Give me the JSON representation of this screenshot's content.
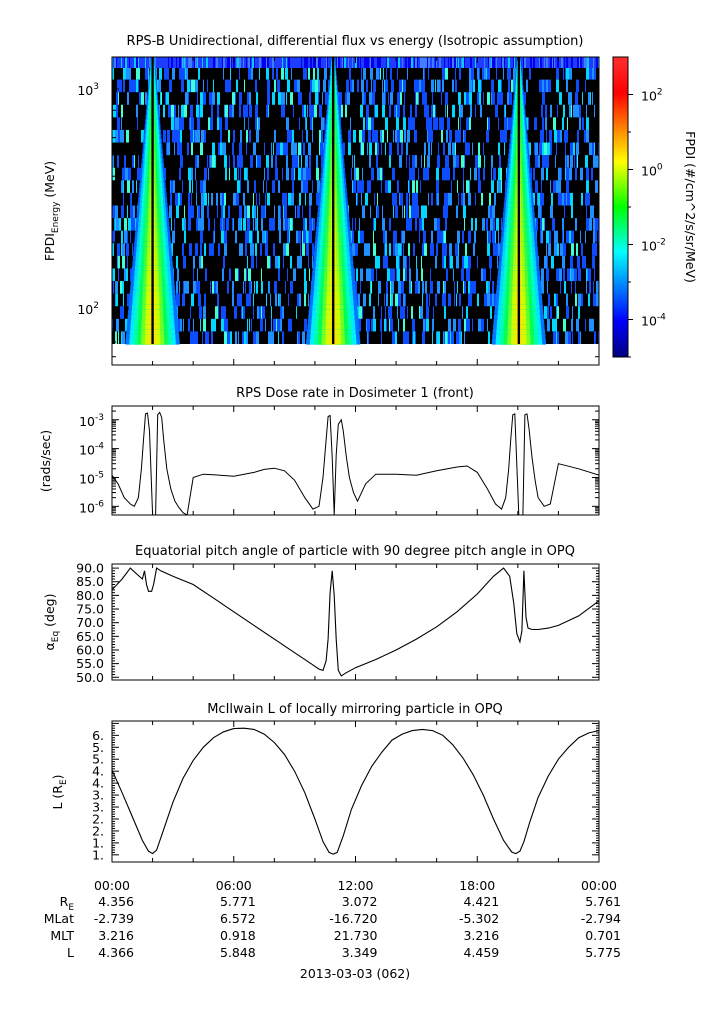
{
  "chart_data": [
    {
      "type": "heatmap",
      "title": "RPS-B  Unidirectional, differential flux vs energy (Isotropic assumption)",
      "ylabel_main": "FPDI",
      "ylabel_sub": "Energy",
      "ylabel_unit": " (MeV)",
      "y_scale": "log",
      "ylim": [
        55,
        1400
      ],
      "y_ticks": [
        {
          "value": 100,
          "base": "10",
          "exp": "2"
        },
        {
          "value": 1000,
          "base": "10",
          "exp": "3"
        }
      ],
      "xlim": [
        0,
        24
      ],
      "dark_bands_hours": [
        2.0,
        10.9,
        20.05
      ],
      "colorbar": {
        "label": "FPDI (#/cm^2/s/sr/MeV)",
        "scale": "log",
        "range": [
          1e-05,
          1000
        ],
        "ticks": [
          {
            "value": 100,
            "base": "10",
            "exp": "2"
          },
          {
            "value": 1,
            "base": "10",
            "exp": "0"
          },
          {
            "value": 0.01,
            "base": "10",
            "exp": "-2"
          },
          {
            "value": 0.0001,
            "base": "10",
            "exp": "-4"
          }
        ]
      }
    },
    {
      "type": "line",
      "title": "RPS  Dose rate in Dosimeter 1 (front)",
      "ylabel": "(rads/sec)",
      "y_scale": "log",
      "ylim": [
        5e-07,
        0.003
      ],
      "xlim": [
        0,
        24
      ],
      "y_ticks": [
        {
          "value": 0.001,
          "base": "10",
          "exp": "-3"
        },
        {
          "value": 0.0001,
          "base": "10",
          "exp": "-4"
        },
        {
          "value": 1e-05,
          "base": "10",
          "exp": "-5"
        },
        {
          "value": 1e-06,
          "base": "10",
          "exp": "-6"
        }
      ],
      "series": [
        {
          "x": [
            0.0,
            0.3,
            0.6,
            0.9,
            1.1,
            1.3,
            1.45,
            1.55,
            1.65,
            1.75,
            1.85,
            2.0,
            2.15,
            2.25,
            2.35,
            2.45,
            2.55,
            2.7,
            2.9,
            3.1,
            3.3,
            3.5,
            3.7,
            4.0,
            4.5,
            5.0,
            6.0,
            7.0,
            7.5,
            8.0,
            8.5,
            9.0,
            9.5,
            9.9,
            10.2,
            10.4,
            10.55,
            10.65,
            10.75,
            10.85,
            10.95,
            11.05,
            11.15,
            11.3,
            11.4,
            11.55,
            11.7,
            11.9,
            12.1,
            12.5,
            13.0,
            14.0,
            15.0,
            16.0,
            17.0,
            17.5,
            18.0,
            18.5,
            18.9,
            19.2,
            19.4,
            19.55,
            19.65,
            19.75,
            19.85,
            20.05,
            20.25,
            20.35,
            20.45,
            20.55,
            20.7,
            20.85,
            21.0,
            21.3,
            21.6,
            22.0,
            23.0,
            24.0
          ],
          "values": [
            1.2e-05,
            6e-06,
            2e-06,
            1.2e-06,
            1e-06,
            2e-06,
            2e-05,
            0.0002,
            0.0016,
            0.0017,
            0.0004,
            5e-07,
            5e-07,
            0.0015,
            0.0018,
            0.0012,
            0.0002,
            2e-05,
            4e-06,
            1.5e-06,
            9e-07,
            6e-07,
            5e-07,
            1e-05,
            1.3e-05,
            1.25e-05,
            1.1e-05,
            1.5e-05,
            1.9e-05,
            2.1e-05,
            1.7e-05,
            8e-06,
            2e-06,
            8e-07,
            1e-06,
            1e-05,
            0.0002,
            0.0013,
            0.0014,
            5e-05,
            5e-07,
            6e-05,
            0.0007,
            0.001,
            0.0004,
            5e-05,
            1e-05,
            3e-06,
            1.5e-06,
            6e-06,
            1.3e-05,
            1.3e-05,
            1.2e-05,
            1.7e-05,
            2.3e-05,
            2.5e-05,
            1.5e-05,
            4e-06,
            1.2e-06,
            8e-07,
            2e-06,
            2e-05,
            0.0002,
            0.0015,
            0.0016,
            5e-07,
            5e-07,
            0.0015,
            0.0016,
            0.0005,
            5e-05,
            8e-06,
            2e-06,
            1e-06,
            1.2e-06,
            3e-05,
            2e-05,
            1.2e-05
          ]
        }
      ]
    },
    {
      "type": "line",
      "title": "Equatorial pitch angle of particle with 90 degree pitch angle in OPQ",
      "ylabel_main": "α",
      "ylabel_sub": "Eq",
      "ylabel_unit": " (deg)",
      "ylim": [
        49,
        91.5
      ],
      "xlim": [
        0,
        24
      ],
      "y_ticks": [
        90,
        85,
        80,
        75,
        70,
        65,
        60,
        55,
        50
      ],
      "series": [
        {
          "x": [
            0.0,
            0.5,
            0.9,
            1.2,
            1.5,
            1.6,
            1.7,
            1.8,
            1.95,
            2.05,
            2.2,
            2.4,
            3.0,
            4.0,
            5.0,
            6.0,
            7.0,
            8.0,
            9.0,
            9.8,
            10.2,
            10.4,
            10.55,
            10.65,
            10.75,
            10.85,
            10.95,
            11.05,
            11.15,
            11.3,
            11.5,
            12.0,
            13.0,
            14.0,
            15.0,
            16.0,
            17.0,
            18.0,
            18.8,
            19.3,
            19.6,
            19.8,
            19.95,
            20.1,
            20.2,
            20.3,
            20.4,
            20.5,
            20.7,
            21.0,
            21.5,
            22.0,
            23.0,
            24.0
          ],
          "values": [
            82,
            86,
            90,
            88,
            86,
            89,
            84,
            81.5,
            81.5,
            84,
            90,
            89,
            87,
            84,
            79,
            74,
            69,
            64,
            59,
            55,
            53,
            52.5,
            56,
            64,
            81,
            89,
            80,
            64,
            52.5,
            50.5,
            51.5,
            53.5,
            56.5,
            60,
            64,
            68.5,
            74,
            80.5,
            87,
            90,
            87,
            77,
            66,
            63,
            67,
            89,
            72,
            68,
            67.5,
            67.5,
            68,
            69,
            72.5,
            78
          ]
        }
      ]
    },
    {
      "type": "line",
      "title": "McIlwain L of locally mirroring particle in OPQ",
      "ylabel_main": "L (R",
      "ylabel_sub": "E",
      "ylabel_unit": ")",
      "ylim": [
        0.7,
        6.6
      ],
      "xlim": [
        0,
        24
      ],
      "y_ticks": [
        6,
        5.5,
        5,
        4.5,
        4,
        3.5,
        3,
        2.5,
        2,
        1.5,
        1
      ],
      "y_tick_labels": [
        "6.",
        "5.",
        "5.",
        "4.",
        "4.",
        "3.",
        "3.",
        "2.",
        "2.",
        "1.",
        "1."
      ],
      "series": [
        {
          "x": [
            0,
            0.5,
            1.0,
            1.5,
            1.8,
            2.0,
            2.2,
            2.6,
            3.0,
            3.5,
            4.0,
            4.5,
            5.0,
            5.5,
            6.0,
            6.5,
            7.0,
            7.5,
            8.0,
            8.5,
            9.0,
            9.5,
            10.0,
            10.4,
            10.7,
            10.9,
            11.1,
            11.4,
            11.8,
            12.3,
            12.8,
            13.3,
            13.8,
            14.3,
            14.8,
            15.3,
            15.8,
            16.3,
            16.8,
            17.3,
            17.8,
            18.3,
            18.8,
            19.3,
            19.7,
            19.9,
            20.1,
            20.3,
            20.6,
            21.0,
            21.5,
            22.0,
            22.5,
            23.0,
            23.5,
            24.0
          ],
          "values": [
            4.55,
            3.6,
            2.6,
            1.6,
            1.15,
            1.05,
            1.2,
            2.2,
            3.2,
            4.2,
            4.95,
            5.5,
            5.9,
            6.15,
            6.28,
            6.3,
            6.25,
            6.05,
            5.7,
            5.2,
            4.5,
            3.6,
            2.5,
            1.55,
            1.1,
            1.03,
            1.1,
            1.8,
            2.9,
            3.9,
            4.7,
            5.3,
            5.8,
            6.05,
            6.2,
            6.25,
            6.2,
            6.0,
            5.6,
            5.05,
            4.35,
            3.5,
            2.5,
            1.6,
            1.12,
            1.05,
            1.15,
            1.55,
            2.4,
            3.4,
            4.3,
            5.0,
            5.5,
            5.9,
            6.1,
            6.2
          ]
        }
      ]
    }
  ],
  "x_axis": {
    "tick_labels": [
      "00:00",
      "06:00",
      "12:00",
      "18:00",
      "00:00"
    ],
    "date_label": "2013-03-03 (062)"
  },
  "ephemeris": {
    "rows": [
      {
        "label": "R",
        "label_sub": "E",
        "values": [
          "4.356",
          "5.771",
          "3.072",
          "4.421",
          "5.761"
        ]
      },
      {
        "label": "MLat",
        "label_sub": "",
        "values": [
          "-2.739",
          "6.572",
          "-16.720",
          "-5.302",
          "-2.794"
        ]
      },
      {
        "label": "MLT",
        "label_sub": "",
        "values": [
          "3.216",
          "0.918",
          "21.730",
          "3.216",
          "0.701"
        ]
      },
      {
        "label": "L",
        "label_sub": "",
        "values": [
          "4.366",
          "5.848",
          "3.349",
          "4.459",
          "5.775"
        ]
      }
    ]
  }
}
